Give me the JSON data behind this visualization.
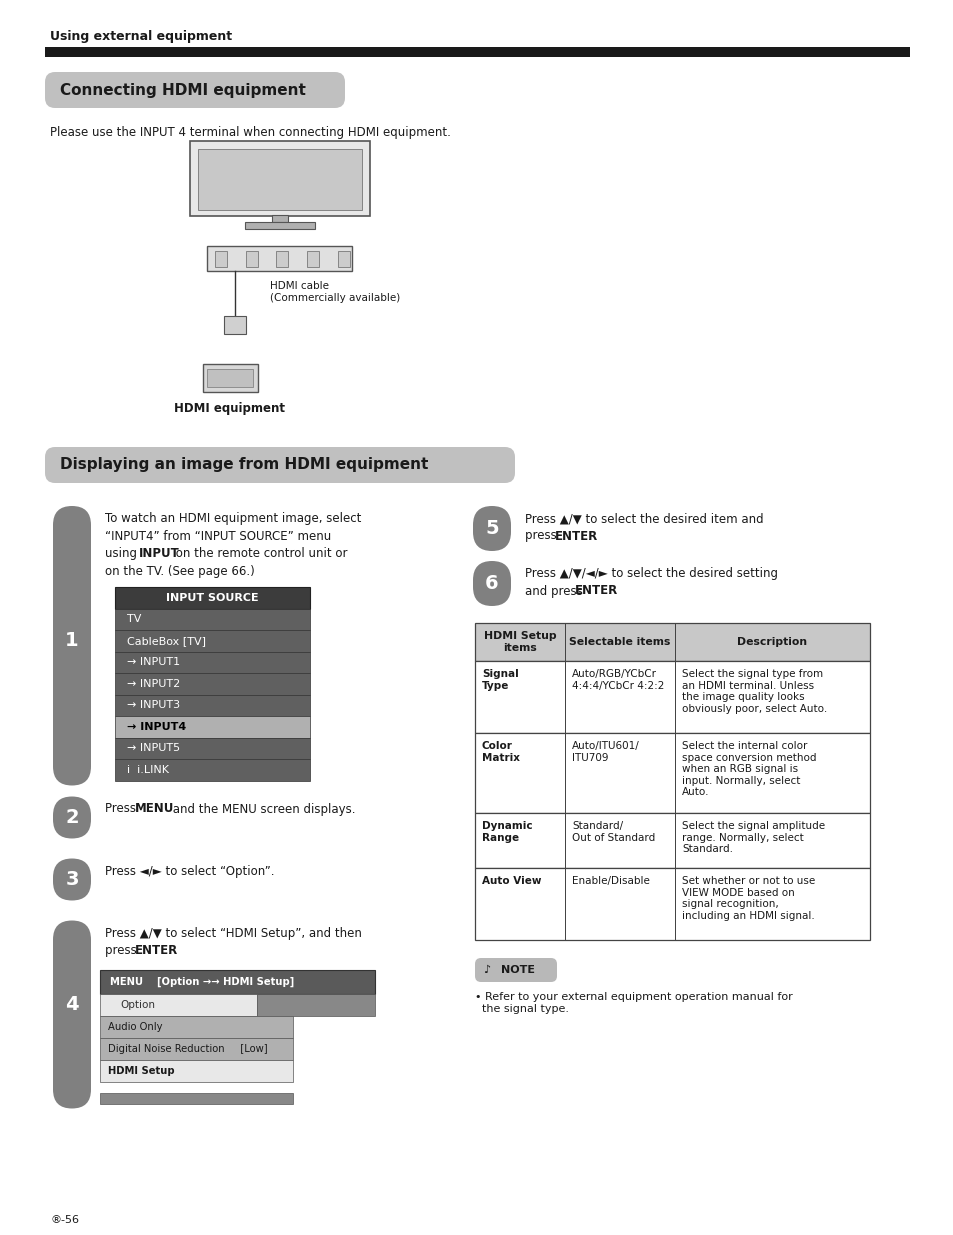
{
  "page_bg": "#ffffff",
  "page_width": 9.54,
  "page_height": 12.35,
  "top_label": "Using external equipment",
  "section1_title": "Connecting HDMI equipment",
  "section1_title_bg": "#c0c0c0",
  "section1_body": "Please use the INPUT 4 terminal when connecting HDMI equipment.",
  "hdmi_label": "HDMI equipment",
  "hdmi_cable_label": "HDMI cable\n(Commercially available)",
  "section2_title": "Displaying an image from HDMI equipment",
  "section2_title_bg": "#c0c0c0",
  "step1_num": "1",
  "step2_num": "2",
  "step3_num": "3",
  "step4_num": "4",
  "step5_num": "5",
  "step6_num": "6",
  "input_source_menu": [
    "TV",
    "CableBox [TV]",
    "→ INPUT1",
    "→ INPUT2",
    "→ INPUT3",
    "→ INPUT4",
    "→ INPUT5",
    "i  i.LINK"
  ],
  "input_source_selected": 5,
  "menu_bar_text": "MENU    [Option →→ HDMI Setup]",
  "menu_items": [
    "Option",
    "Audio Only",
    "Digital Noise Reduction     [Low]",
    "HDMI Setup"
  ],
  "table_headers": [
    "HDMI Setup\nitems",
    "Selectable items",
    "Description"
  ],
  "table_rows": [
    [
      "Signal\nType",
      "Auto/RGB/YCbCr\n4:4:4/YCbCr 4:2:2",
      "Select the signal type from\nan HDMI terminal. Unless\nthe image quality looks\nobviously poor, select Auto."
    ],
    [
      "Color\nMatrix",
      "Auto/ITU601/\nITU709",
      "Select the internal color\nspace conversion method\nwhen an RGB signal is\ninput. Normally, select\nAuto."
    ],
    [
      "Dynamic\nRange",
      "Standard/\nOut of Standard",
      "Select the signal amplitude\nrange. Normally, select\nStandard."
    ],
    [
      "Auto View",
      "Enable/Disable",
      "Set whether or not to use\nVIEW MODE based on\nsignal recognition,\nincluding an HDMI signal."
    ]
  ],
  "note_text": "• Refer to your external equipment operation manual for\n  the signal type.",
  "page_num": "-56",
  "step_pill_color": "#808080",
  "input_source_header_bg": "#3c3c3c",
  "input_source_header_fg": "#ffffff",
  "input_source_row_bg": "#606060",
  "input_source_row_fg": "#ffffff",
  "input_source_selected_bg": "#b0b0b0",
  "input_source_selected_fg": "#000000",
  "menu_header_bg": "#5a5a5a",
  "menu_header_fg": "#ffffff",
  "table_header_bg": "#c8c8c8",
  "table_border": "#444444",
  "note_bg": "#b8b8b8"
}
